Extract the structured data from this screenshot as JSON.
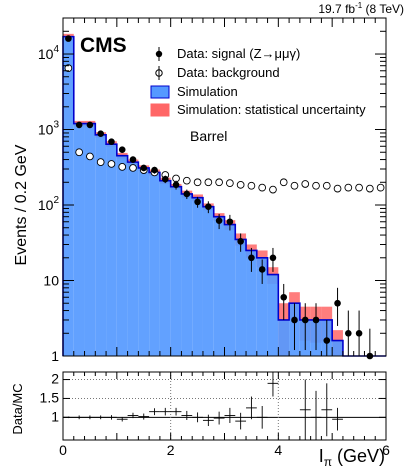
{
  "chart_data": {
    "type": "bar",
    "lumi_label": "19.7 fb",
    "lumi_sup": "-1",
    "lumi_suffix": " (8 TeV)",
    "experiment": "CMS",
    "region_label": "Barrel",
    "xlabel_main": "I",
    "xlabel_sub": "π",
    "xlabel_unit": " (GeV)",
    "ylabel": "Events / 0.2 GeV",
    "ratio_ylabel": "Data/MC",
    "xlim": [
      0,
      6
    ],
    "ylim": [
      1,
      30000
    ],
    "log_y": true,
    "ratio_ylim": [
      0.4,
      2.2
    ],
    "x_ticks": [
      "0",
      "2",
      "4",
      "6"
    ],
    "y_ticks": [
      {
        "v": 1,
        "label": "1"
      },
      {
        "v": 10,
        "label": "10"
      },
      {
        "v": 100,
        "label": "10",
        "exp": "2"
      },
      {
        "v": 1000,
        "label": "10",
        "exp": "3"
      },
      {
        "v": 10000,
        "label": "10",
        "exp": "4"
      }
    ],
    "ratio_y_ticks": [
      "1",
      "1.5",
      "2"
    ],
    "legend": {
      "signal": "Data: signal (Z→μμγ)",
      "background": "Data: background",
      "simulation": "Simulation",
      "sim_unc": "Simulation: statistical uncertainty"
    },
    "colors": {
      "sim_fill": "#5599ff",
      "sim_line": "#0000cc",
      "unc_fill": "#ff6666",
      "magenta": "#cc33cc"
    },
    "bin_edges": [
      0,
      0.2,
      0.4,
      0.6,
      0.8,
      1.0,
      1.2,
      1.4,
      1.6,
      1.8,
      2.0,
      2.2,
      2.4,
      2.6,
      2.8,
      3.0,
      3.2,
      3.4,
      3.6,
      3.8,
      4.0,
      4.2,
      4.4,
      4.6,
      4.8,
      5.0,
      5.2,
      5.4,
      5.6,
      5.8,
      6.0
    ],
    "simulation": [
      17000,
      1200,
      1200,
      850,
      640,
      450,
      370,
      310,
      270,
      210,
      175,
      140,
      125,
      95,
      70,
      55,
      35,
      25,
      20,
      12,
      3,
      5,
      3,
      3,
      3,
      1.6,
      1,
      1,
      1,
      1
    ],
    "sim_unc_low": [
      15500,
      1100,
      1100,
      780,
      590,
      410,
      340,
      285,
      245,
      190,
      160,
      125,
      112,
      85,
      62,
      47,
      29,
      20,
      15,
      9,
      1,
      3,
      1.6,
      1.5,
      1.6,
      1,
      1,
      1,
      1,
      1
    ],
    "sim_unc_high": [
      18500,
      1300,
      1300,
      920,
      700,
      490,
      400,
      335,
      295,
      230,
      190,
      155,
      138,
      105,
      78,
      63,
      42,
      30,
      25,
      15,
      5,
      7,
      4.5,
      4.5,
      4.5,
      2.2,
      1,
      1,
      1,
      1
    ],
    "signal_data": [
      {
        "x": 0.1,
        "y": 16000,
        "lo": 15700,
        "hi": 16300
      },
      {
        "x": 0.3,
        "y": 1150,
        "lo": 1080,
        "hi": 1220
      },
      {
        "x": 0.5,
        "y": 1150,
        "lo": 1080,
        "hi": 1220
      },
      {
        "x": 0.7,
        "y": 880,
        "lo": 820,
        "hi": 940
      },
      {
        "x": 0.9,
        "y": 690,
        "lo": 640,
        "hi": 740
      },
      {
        "x": 1.1,
        "y": 540,
        "lo": 495,
        "hi": 585
      },
      {
        "x": 1.3,
        "y": 400,
        "lo": 360,
        "hi": 440
      },
      {
        "x": 1.5,
        "y": 310,
        "lo": 280,
        "hi": 340
      },
      {
        "x": 1.7,
        "y": 290,
        "lo": 260,
        "hi": 320
      },
      {
        "x": 1.9,
        "y": 220,
        "lo": 195,
        "hi": 245
      },
      {
        "x": 2.1,
        "y": 185,
        "lo": 160,
        "hi": 210
      },
      {
        "x": 2.3,
        "y": 140,
        "lo": 120,
        "hi": 160
      },
      {
        "x": 2.5,
        "y": 110,
        "lo": 92,
        "hi": 128
      },
      {
        "x": 2.7,
        "y": 95,
        "lo": 78,
        "hi": 112
      },
      {
        "x": 2.9,
        "y": 62,
        "lo": 48,
        "hi": 76
      },
      {
        "x": 3.1,
        "y": 60,
        "lo": 46,
        "hi": 74
      },
      {
        "x": 3.3,
        "y": 33,
        "lo": 24,
        "hi": 42
      },
      {
        "x": 3.5,
        "y": 20,
        "lo": 13,
        "hi": 27
      },
      {
        "x": 3.7,
        "y": 14,
        "lo": 9,
        "hi": 19
      },
      {
        "x": 3.9,
        "y": 20,
        "lo": 13,
        "hi": 27
      },
      {
        "x": 4.1,
        "y": 6,
        "lo": 3,
        "hi": 9
      },
      {
        "x": 4.3,
        "y": 3,
        "lo": 1.2,
        "hi": 5
      },
      {
        "x": 4.5,
        "y": 3,
        "lo": 1.2,
        "hi": 5
      },
      {
        "x": 4.7,
        "y": 3,
        "lo": 1.2,
        "hi": 5
      },
      {
        "x": 4.9,
        "y": 1.6,
        "lo": 1,
        "hi": 3
      },
      {
        "x": 5.1,
        "y": 5,
        "lo": 2.5,
        "hi": 8
      },
      {
        "x": 5.3,
        "y": 2,
        "lo": 1,
        "hi": 4
      },
      {
        "x": 5.5,
        "y": 2,
        "lo": 1,
        "hi": 4
      },
      {
        "x": 5.7,
        "y": 1,
        "lo": 1,
        "hi": 2.3
      }
    ],
    "background_data": [
      {
        "x": 0.1,
        "y": 6500
      },
      {
        "x": 0.3,
        "y": 500
      },
      {
        "x": 0.5,
        "y": 440
      },
      {
        "x": 0.7,
        "y": 370
      },
      {
        "x": 0.9,
        "y": 350
      },
      {
        "x": 1.1,
        "y": 320
      },
      {
        "x": 1.3,
        "y": 310
      },
      {
        "x": 1.5,
        "y": 290
      },
      {
        "x": 1.7,
        "y": 270
      },
      {
        "x": 1.9,
        "y": 250
      },
      {
        "x": 2.1,
        "y": 225
      },
      {
        "x": 2.3,
        "y": 210
      },
      {
        "x": 2.5,
        "y": 200
      },
      {
        "x": 2.7,
        "y": 200
      },
      {
        "x": 2.9,
        "y": 200
      },
      {
        "x": 3.1,
        "y": 195
      },
      {
        "x": 3.3,
        "y": 185
      },
      {
        "x": 3.5,
        "y": 180
      },
      {
        "x": 3.7,
        "y": 170
      },
      {
        "x": 3.9,
        "y": 160
      },
      {
        "x": 4.1,
        "y": 200
      },
      {
        "x": 4.3,
        "y": 180
      },
      {
        "x": 4.5,
        "y": 190
      },
      {
        "x": 4.7,
        "y": 180
      },
      {
        "x": 4.9,
        "y": 180
      },
      {
        "x": 5.1,
        "y": 165
      },
      {
        "x": 5.3,
        "y": 170
      },
      {
        "x": 5.5,
        "y": 170
      },
      {
        "x": 5.7,
        "y": 165
      },
      {
        "x": 5.9,
        "y": 170
      }
    ],
    "ratio_data": [
      {
        "x": 0.1,
        "y": 1.0,
        "e": 0.02
      },
      {
        "x": 0.3,
        "y": 1.0,
        "e": 0.05
      },
      {
        "x": 0.5,
        "y": 1.0,
        "e": 0.05
      },
      {
        "x": 0.7,
        "y": 1.0,
        "e": 0.05
      },
      {
        "x": 0.9,
        "y": 1.0,
        "e": 0.06
      },
      {
        "x": 1.1,
        "y": 0.95,
        "e": 0.06
      },
      {
        "x": 1.3,
        "y": 1.05,
        "e": 0.07
      },
      {
        "x": 1.5,
        "y": 1.02,
        "e": 0.08
      },
      {
        "x": 1.7,
        "y": 1.15,
        "e": 0.09
      },
      {
        "x": 1.9,
        "y": 1.15,
        "e": 0.1
      },
      {
        "x": 2.1,
        "y": 1.15,
        "e": 0.1
      },
      {
        "x": 2.3,
        "y": 1.05,
        "e": 0.12
      },
      {
        "x": 2.5,
        "y": 1.0,
        "e": 0.13
      },
      {
        "x": 2.7,
        "y": 0.92,
        "e": 0.15
      },
      {
        "x": 2.9,
        "y": 0.98,
        "e": 0.17
      },
      {
        "x": 3.1,
        "y": 1.05,
        "e": 0.2
      },
      {
        "x": 3.3,
        "y": 0.9,
        "e": 0.22
      },
      {
        "x": 3.5,
        "y": 1.25,
        "e": 0.3
      },
      {
        "x": 3.7,
        "y": 1.0,
        "e": 0.3
      },
      {
        "x": 3.9,
        "y": 1.9,
        "e": 0.35
      },
      {
        "x": 4.5,
        "y": 1.2,
        "e": 0.8
      },
      {
        "x": 4.7,
        "y": 1.0,
        "e": 0.7
      },
      {
        "x": 4.9,
        "y": 1.2,
        "e": 0.7
      },
      {
        "x": 5.1,
        "y": 0.95,
        "e": 0.3
      }
    ]
  }
}
